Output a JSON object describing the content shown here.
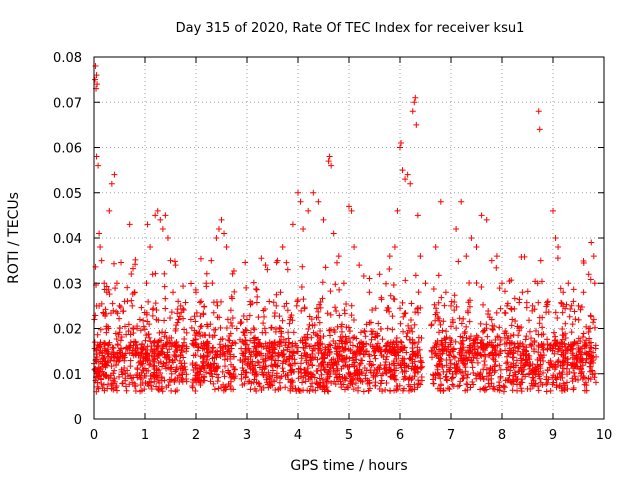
{
  "chart_data": {
    "type": "scatter",
    "title": "Day 315 of 2020, Rate Of TEC Index for receiver ksu1",
    "xlabel": "GPS time / hours",
    "ylabel": "ROTI / TECUs",
    "xlim": [
      0,
      10
    ],
    "ylim": [
      0,
      0.08
    ],
    "xticks": [
      0,
      1,
      2,
      3,
      4,
      5,
      6,
      7,
      8,
      9,
      10
    ],
    "xtick_labels": [
      "0",
      "1",
      "2",
      "3",
      "4",
      "5",
      "6",
      "7",
      "8",
      "9",
      "10"
    ],
    "yticks": [
      0,
      0.01,
      0.02,
      0.03,
      0.04,
      0.05,
      0.06,
      0.07,
      0.08
    ],
    "ytick_labels": [
      "0",
      "0.01",
      "0.02",
      "0.03",
      "0.04",
      "0.05",
      "0.06",
      "0.07",
      "0.08"
    ],
    "grid": true,
    "marker": "+",
    "color": "#ff0000",
    "series": [
      {
        "name": "ROTI",
        "points": [
          [
            0.02,
            0.075
          ],
          [
            0.03,
            0.078
          ],
          [
            0.05,
            0.076
          ],
          [
            0.06,
            0.074
          ],
          [
            0.04,
            0.073
          ],
          [
            0.05,
            0.058
          ],
          [
            0.08,
            0.056
          ],
          [
            0.1,
            0.041
          ],
          [
            0.12,
            0.038
          ],
          [
            0.15,
            0.035
          ],
          [
            0.1,
            0.025
          ],
          [
            0.2,
            0.03
          ],
          [
            0.25,
            0.028
          ],
          [
            0.3,
            0.046
          ],
          [
            0.35,
            0.052
          ],
          [
            0.4,
            0.054
          ],
          [
            0.45,
            0.03
          ],
          [
            0.5,
            0.025
          ],
          [
            0.6,
            0.026
          ],
          [
            0.7,
            0.043
          ],
          [
            0.75,
            0.025
          ],
          [
            0.8,
            0.028
          ],
          [
            0.9,
            0.022
          ],
          [
            1.05,
            0.043
          ],
          [
            1.1,
            0.038
          ],
          [
            1.15,
            0.032
          ],
          [
            1.2,
            0.045
          ],
          [
            1.25,
            0.046
          ],
          [
            1.3,
            0.044
          ],
          [
            1.35,
            0.042
          ],
          [
            1.4,
            0.045
          ],
          [
            1.45,
            0.04
          ],
          [
            1.5,
            0.035
          ],
          [
            1.55,
            0.028
          ],
          [
            1.6,
            0.034
          ],
          [
            1.65,
            0.026
          ],
          [
            1.7,
            0.025
          ],
          [
            1.9,
            0.022
          ],
          [
            2.0,
            0.028
          ],
          [
            2.1,
            0.026
          ],
          [
            2.2,
            0.03
          ],
          [
            2.3,
            0.035
          ],
          [
            2.4,
            0.04
          ],
          [
            2.45,
            0.042
          ],
          [
            2.5,
            0.044
          ],
          [
            2.55,
            0.041
          ],
          [
            2.6,
            0.038
          ],
          [
            2.7,
            0.027
          ],
          [
            2.8,
            0.02
          ],
          [
            3.0,
            0.022
          ],
          [
            3.2,
            0.027
          ],
          [
            3.4,
            0.033
          ],
          [
            3.6,
            0.035
          ],
          [
            3.7,
            0.038
          ],
          [
            3.8,
            0.033
          ],
          [
            3.9,
            0.043
          ],
          [
            4.0,
            0.05
          ],
          [
            4.05,
            0.048
          ],
          [
            4.1,
            0.042
          ],
          [
            4.2,
            0.046
          ],
          [
            4.3,
            0.05
          ],
          [
            4.4,
            0.048
          ],
          [
            4.5,
            0.044
          ],
          [
            4.6,
            0.057
          ],
          [
            4.62,
            0.058
          ],
          [
            4.65,
            0.056
          ],
          [
            4.7,
            0.041
          ],
          [
            4.8,
            0.036
          ],
          [
            4.9,
            0.03
          ],
          [
            5.0,
            0.047
          ],
          [
            5.05,
            0.046
          ],
          [
            5.1,
            0.038
          ],
          [
            5.2,
            0.034
          ],
          [
            5.4,
            0.028
          ],
          [
            5.6,
            0.032
          ],
          [
            5.8,
            0.036
          ],
          [
            5.9,
            0.038
          ],
          [
            5.95,
            0.046
          ],
          [
            6.0,
            0.06
          ],
          [
            6.02,
            0.061
          ],
          [
            6.05,
            0.055
          ],
          [
            6.1,
            0.053
          ],
          [
            6.15,
            0.054
          ],
          [
            6.2,
            0.052
          ],
          [
            6.25,
            0.068
          ],
          [
            6.28,
            0.07
          ],
          [
            6.3,
            0.071
          ],
          [
            6.32,
            0.065
          ],
          [
            6.35,
            0.045
          ],
          [
            6.4,
            0.036
          ],
          [
            6.5,
            0.03
          ],
          [
            6.7,
            0.038
          ],
          [
            6.8,
            0.048
          ],
          [
            6.9,
            0.028
          ],
          [
            7.0,
            0.025
          ],
          [
            7.1,
            0.042
          ],
          [
            7.2,
            0.048
          ],
          [
            7.3,
            0.036
          ],
          [
            7.4,
            0.04
          ],
          [
            7.5,
            0.038
          ],
          [
            7.6,
            0.045
          ],
          [
            7.7,
            0.044
          ],
          [
            7.8,
            0.035
          ],
          [
            7.9,
            0.036
          ],
          [
            8.0,
            0.03
          ],
          [
            8.1,
            0.025
          ],
          [
            8.2,
            0.022
          ],
          [
            8.4,
            0.028
          ],
          [
            8.6,
            0.025
          ],
          [
            8.7,
            0.03
          ],
          [
            8.72,
            0.068
          ],
          [
            8.74,
            0.064
          ],
          [
            8.76,
            0.035
          ],
          [
            8.9,
            0.026
          ],
          [
            9.0,
            0.046
          ],
          [
            9.05,
            0.04
          ],
          [
            9.1,
            0.038
          ],
          [
            9.2,
            0.028
          ],
          [
            9.3,
            0.03
          ],
          [
            9.4,
            0.026
          ],
          [
            9.5,
            0.025
          ],
          [
            9.6,
            0.028
          ],
          [
            9.7,
            0.032
          ],
          [
            9.75,
            0.039
          ],
          [
            9.8,
            0.036
          ],
          [
            9.82,
            0.03
          ]
        ]
      }
    ]
  }
}
